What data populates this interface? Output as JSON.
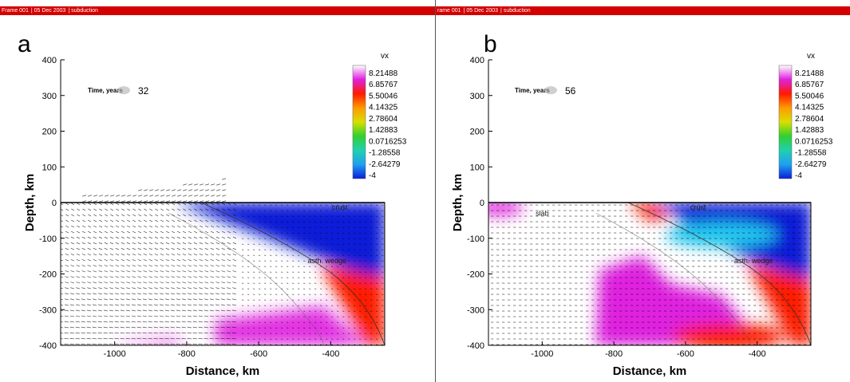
{
  "panels": [
    {
      "letter": "a",
      "frame_bar": {
        "frame": "Frame 001",
        "date": "05 Dec 2003",
        "title": "subduction"
      },
      "time_label": "Time, years",
      "time_value": "32",
      "regions": {
        "crust": "crust",
        "wedge": "asth. wedge"
      }
    },
    {
      "letter": "b",
      "frame_bar": {
        "frame": "rame 001",
        "date": "05 Dec 2003",
        "title": "subduction"
      },
      "time_label": "Time, years",
      "time_value": "56",
      "regions": {
        "slab": "slab",
        "crust": "crust",
        "wedge": "asth. wedge"
      }
    }
  ],
  "colors": {
    "frame_bar": "#d40000",
    "colormap": [
      "#0a1fd8",
      "#1fa0f0",
      "#20d0b0",
      "#30d030",
      "#d8e000",
      "#ff9a00",
      "#ff1a00",
      "#e020e0",
      "#ffffff"
    ]
  },
  "chart_data": [
    {
      "type": "heatmap",
      "title": "",
      "xlabel": "Distance, km",
      "ylabel": "Depth, km",
      "xlim": [
        -1150,
        -250
      ],
      "ylim": [
        -400,
        400
      ],
      "x_ticks": [
        -1000,
        -800,
        -600,
        -400
      ],
      "y_ticks": [
        400,
        300,
        200,
        100,
        0,
        -100,
        -200,
        -300,
        -400
      ],
      "grid": false,
      "colorbar": {
        "variable": "vx",
        "levels": [
          "8.21488",
          "6.85767",
          "5.50046",
          "4.14325",
          "2.78604",
          "1.42883",
          "0.0716253",
          "-1.28558",
          "-2.64279",
          "-4"
        ],
        "placement": "top-right"
      },
      "overlay": "velocity vector field"
    },
    {
      "type": "heatmap",
      "title": "",
      "xlabel": "Distance, km",
      "ylabel": "Depth, km",
      "xlim": [
        -1150,
        -250
      ],
      "ylim": [
        -400,
        400
      ],
      "x_ticks": [
        -1000,
        -800,
        -600,
        -400
      ],
      "y_ticks": [
        400,
        300,
        200,
        100,
        0,
        -100,
        -200,
        -300,
        -400
      ],
      "grid": false,
      "colorbar": {
        "variable": "vx",
        "levels": [
          "8.21488",
          "6.85767",
          "5.50046",
          "4.14325",
          "2.78604",
          "1.42883",
          "0.0716253",
          "-1.28558",
          "-2.64279",
          "-4"
        ],
        "placement": "top-right"
      },
      "overlay": "velocity vector field"
    }
  ]
}
